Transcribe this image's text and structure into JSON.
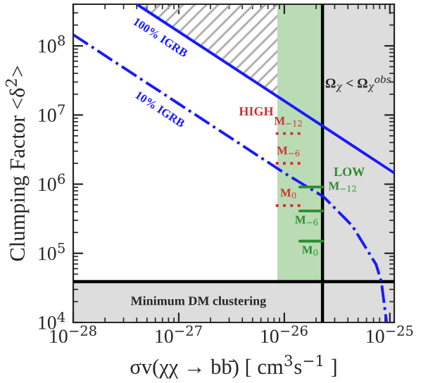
{
  "chart_data": {
    "type": "line",
    "xlabel": "σv(χχ → bb̄) [ cm$^{3}$s$^{−1}$ ]",
    "ylabel": "Clumping Factor <δ$^{2}$>",
    "log": "xy",
    "xlim": [
      1e-28,
      1.1e-25
    ],
    "ylim": [
      10000.0,
      400000000.0
    ],
    "xticks": [
      {
        "value": 1e-28,
        "label": "10$^{−28}$"
      },
      {
        "value": 1e-27,
        "label": "10$^{−27}$"
      },
      {
        "value": 1e-26,
        "label": "10$^{−26}$"
      },
      {
        "value": 1e-25,
        "label": "10$^{−25}$"
      }
    ],
    "yticks": [
      {
        "value": 10000.0,
        "label": "10$^{4}$"
      },
      {
        "value": 100000.0,
        "label": "10$^{5}$"
      },
      {
        "value": 1000000.0,
        "label": "10$^{6}$"
      },
      {
        "value": 10000000.0,
        "label": "10$^{7}$"
      },
      {
        "value": 100000000.0,
        "label": "10$^{8}$"
      }
    ],
    "grid": false,
    "legend": false,
    "marker": "none",
    "bands": [
      {
        "axis": "x",
        "from": 8.6e-27,
        "to": 2.3e-26,
        "color": "#b9dcb4"
      },
      {
        "axis": "x",
        "from": 2.3e-26,
        "to": 1.1e-25,
        "color": "#dddddd",
        "label": "Ω$_{χ}$ < Ω$_{χ}$$^{obs}$"
      },
      {
        "axis": "y",
        "from": 10000.0,
        "to": 39000.0,
        "color": "#dddddd",
        "label": "Minimum DM clustering"
      }
    ],
    "ref_lines": [
      {
        "axis": "x",
        "value": 2.3e-26,
        "color": "#000000"
      },
      {
        "axis": "y",
        "value": 39000.0,
        "color": "#000000"
      }
    ],
    "series": [
      {
        "name": "100% IGRB",
        "color": "#1a1aff",
        "line_style": "solid",
        "x": [
          4e-28,
          1e-26,
          1.1e-25
        ],
        "values": [
          400000000.0,
          16000000.0,
          1450000.0
        ]
      },
      {
        "name": "10% IGRB",
        "color": "#1a1aff",
        "line_style": "dashdot",
        "x": [
          1e-28,
          1e-27,
          1e-26,
          2.35e-26,
          4.4e-26,
          7.4e-26,
          8.3e-26,
          9.3e-26
        ],
        "values": [
          145000000.0,
          14500000.0,
          1450000.0,
          660000.0,
          250000.0,
          69000.0,
          39000.0,
          10000.0
        ]
      },
      {
        "name": "M$_{−12}$",
        "color": "#cc3333",
        "line_style": "dotted",
        "x": [
          8.3e-27,
          1.45e-26
        ],
        "values": [
          5400000.0,
          5400000.0
        ]
      },
      {
        "name": "M$_{−6}$",
        "color": "#cc3333",
        "line_style": "dotted",
        "x": [
          8.3e-27,
          1.45e-26
        ],
        "values": [
          2000000.0,
          2000000.0
        ]
      },
      {
        "name": "M$_{0}$",
        "color": "#cc3333",
        "line_style": "dotted",
        "x": [
          8.3e-27,
          1.45e-26
        ],
        "values": [
          490000.0,
          490000.0
        ]
      },
      {
        "name": "M$_{−12}$",
        "color": "#2e8b2e",
        "line_style": "solid",
        "x": [
          1.4e-26,
          2.3e-26
        ],
        "values": [
          910000.0,
          910000.0
        ]
      },
      {
        "name": "M$_{−6}$",
        "color": "#2e8b2e",
        "line_style": "solid",
        "x": [
          1.4e-26,
          2.3e-26
        ],
        "values": [
          410000.0,
          410000.0
        ]
      },
      {
        "name": "M$_{0}$",
        "color": "#2e8b2e",
        "line_style": "solid",
        "x": [
          1.4e-26,
          2.3e-26
        ],
        "values": [
          150000.0,
          150000.0
        ]
      }
    ],
    "annotations": [
      "HIGH",
      "LOW"
    ]
  }
}
